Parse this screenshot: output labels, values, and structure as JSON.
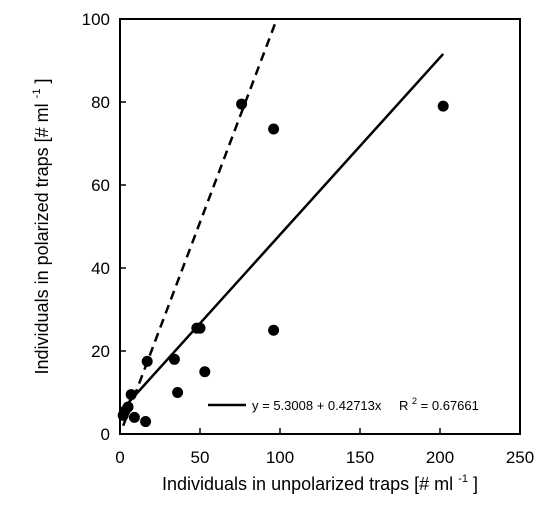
{
  "chart_data": {
    "type": "scatter",
    "xlabel": "Individuals in unpolarized traps [# ml",
    "xlabel_sup": "-1",
    "xlabel_tail": "]",
    "ylabel": "Individuals in polarized traps [# ml",
    "ylabel_sup": "-1",
    "ylabel_tail": "]",
    "xlim": [
      0,
      250
    ],
    "ylim": [
      0,
      100
    ],
    "x_ticks": [
      "0",
      "50",
      "100",
      "150",
      "200",
      "250"
    ],
    "y_ticks": [
      "0",
      "20",
      "40",
      "60",
      "80",
      "100"
    ],
    "x_tick_values": [
      0,
      50,
      100,
      150,
      200,
      250
    ],
    "y_tick_values": [
      0,
      20,
      40,
      60,
      80,
      100
    ],
    "grid": false,
    "points": [
      {
        "x": 2,
        "y": 4.5
      },
      {
        "x": 3,
        "y": 5.5
      },
      {
        "x": 5,
        "y": 6.5
      },
      {
        "x": 7,
        "y": 9.5
      },
      {
        "x": 9,
        "y": 4.0
      },
      {
        "x": 16,
        "y": 3.0
      },
      {
        "x": 17,
        "y": 17.5
      },
      {
        "x": 34,
        "y": 18.0
      },
      {
        "x": 36,
        "y": 10.0
      },
      {
        "x": 48,
        "y": 25.5
      },
      {
        "x": 50,
        "y": 25.5
      },
      {
        "x": 53,
        "y": 15.0
      },
      {
        "x": 76,
        "y": 79.5
      },
      {
        "x": 96,
        "y": 73.5
      },
      {
        "x": 96,
        "y": 25.0
      },
      {
        "x": 202,
        "y": 79.0
      }
    ],
    "fit_line": {
      "intercept": 5.3008,
      "slope": 0.42713,
      "x_start": 2,
      "x_end": 202
    },
    "dashed_line": {
      "x1": 2,
      "y1": 2,
      "x2": 98,
      "y2": 100
    },
    "legend": {
      "text": "y = 5.3008 + 0.42713x",
      "r2_label": "R",
      "r2_sup": "2",
      "r2_value": "= 0.67661",
      "placement": "bottom-right"
    }
  }
}
